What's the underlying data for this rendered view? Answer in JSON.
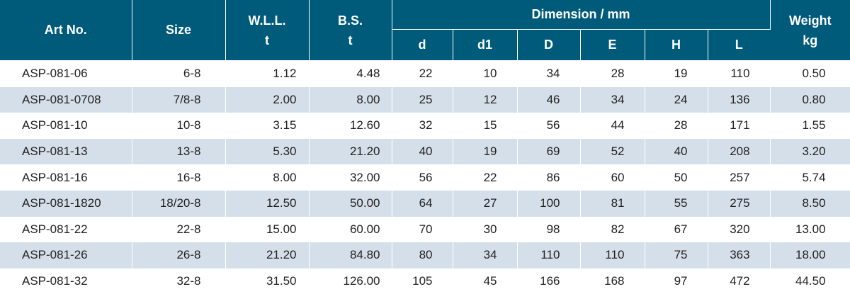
{
  "table": {
    "headers": {
      "art_no": "Art No.",
      "size": "Size",
      "wll": "W.L.L.",
      "wll_unit": "t",
      "bs": "B.S.",
      "bs_unit": "t",
      "dimension": "Dimension / mm",
      "weight": "Weight",
      "weight_unit": "kg",
      "dims": [
        "d",
        "d1",
        "D",
        "E",
        "H",
        "L"
      ]
    },
    "rows": [
      [
        "ASP-081-06",
        "6-8",
        "1.12",
        "4.48",
        "22",
        "10",
        "34",
        "28",
        "19",
        "110",
        "0.50"
      ],
      [
        "ASP-081-0708",
        "7/8-8",
        "2.00",
        "8.00",
        "25",
        "12",
        "46",
        "34",
        "24",
        "136",
        "0.80"
      ],
      [
        "ASP-081-10",
        "10-8",
        "3.15",
        "12.60",
        "32",
        "15",
        "56",
        "44",
        "28",
        "171",
        "1.55"
      ],
      [
        "ASP-081-13",
        "13-8",
        "5.30",
        "21.20",
        "40",
        "19",
        "69",
        "52",
        "40",
        "208",
        "3.20"
      ],
      [
        "ASP-081-16",
        "16-8",
        "8.00",
        "32.00",
        "56",
        "22",
        "86",
        "60",
        "50",
        "257",
        "5.74"
      ],
      [
        "ASP-081-1820",
        "18/20-8",
        "12.50",
        "50.00",
        "64",
        "27",
        "100",
        "81",
        "55",
        "275",
        "8.50"
      ],
      [
        "ASP-081-22",
        "22-8",
        "15.00",
        "60.00",
        "70",
        "30",
        "98",
        "82",
        "67",
        "320",
        "13.00"
      ],
      [
        "ASP-081-26",
        "26-8",
        "21.20",
        "84.80",
        "80",
        "34",
        "110",
        "110",
        "75",
        "363",
        "18.00"
      ],
      [
        "ASP-081-32",
        "32-8",
        "31.50",
        "126.00",
        "105",
        "45",
        "166",
        "168",
        "97",
        "472",
        "44.50"
      ]
    ]
  }
}
